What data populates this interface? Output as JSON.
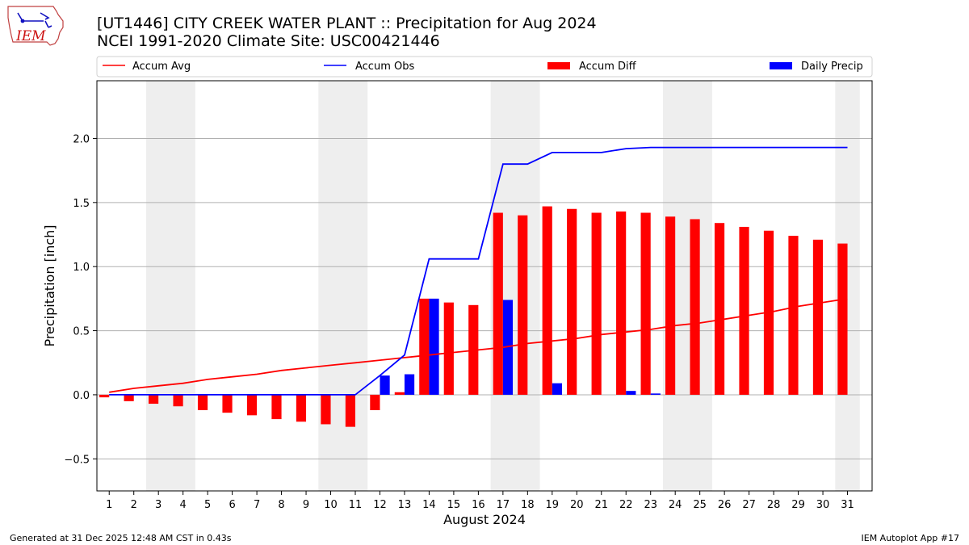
{
  "chart_data": {
    "type": "bar",
    "title_line1": "[UT1446] CITY CREEK WATER PLANT :: Precipitation for Aug 2024",
    "title_line2": "NCEI 1991-2020 Climate Site: USC00421446",
    "xlabel": "August 2024",
    "ylabel": "Precipitation [inch]",
    "ylim": [
      -0.75,
      2.45
    ],
    "yticks": [
      -0.5,
      0.0,
      0.5,
      1.0,
      1.5,
      2.0
    ],
    "ytick_labels": [
      "−0.5",
      "0.0",
      "0.5",
      "1.0",
      "1.5",
      "2.0"
    ],
    "grid": "horizontal",
    "legend_position": "top",
    "legend": [
      "Accum Avg",
      "Accum Obs",
      "Accum Diff",
      "Daily Precip"
    ],
    "weekend_shading": [
      [
        3,
        4
      ],
      [
        10,
        11
      ],
      [
        17,
        18
      ],
      [
        24,
        25
      ],
      [
        31,
        31
      ]
    ],
    "days": [
      1,
      2,
      3,
      4,
      5,
      6,
      7,
      8,
      9,
      10,
      11,
      12,
      13,
      14,
      15,
      16,
      17,
      18,
      19,
      20,
      21,
      22,
      23,
      24,
      25,
      26,
      27,
      28,
      29,
      30,
      31
    ],
    "day_labels": [
      "1",
      "2",
      "3",
      "4",
      "5",
      "6",
      "7",
      "8",
      "9",
      "10",
      "11",
      "12",
      "13",
      "14",
      "15",
      "16",
      "17",
      "18",
      "19",
      "20",
      "21",
      "22",
      "23",
      "24",
      "25",
      "26",
      "27",
      "28",
      "29",
      "30",
      "31"
    ],
    "series": [
      {
        "name": "Accum Avg",
        "kind": "line",
        "color": "#ff0000",
        "values": [
          0.02,
          0.05,
          0.07,
          0.09,
          0.12,
          0.14,
          0.16,
          0.19,
          0.21,
          0.23,
          0.25,
          0.27,
          0.29,
          0.31,
          0.33,
          0.35,
          0.37,
          0.4,
          0.42,
          0.44,
          0.47,
          0.49,
          0.51,
          0.54,
          0.56,
          0.59,
          0.62,
          0.65,
          0.69,
          0.72,
          0.75
        ]
      },
      {
        "name": "Accum Obs",
        "kind": "line",
        "color": "#0000ff",
        "values": [
          0.0,
          0.0,
          0.0,
          0.0,
          0.0,
          0.0,
          0.0,
          0.0,
          0.0,
          0.0,
          0.0,
          0.15,
          0.31,
          1.06,
          1.06,
          1.06,
          1.8,
          1.8,
          1.89,
          1.89,
          1.89,
          1.92,
          1.93,
          1.93,
          1.93,
          1.93,
          1.93,
          1.93,
          1.93,
          1.93,
          1.93
        ]
      },
      {
        "name": "Accum Diff",
        "kind": "bar",
        "color": "#ff0000",
        "values": [
          -0.02,
          -0.05,
          -0.07,
          -0.09,
          -0.12,
          -0.14,
          -0.16,
          -0.19,
          -0.21,
          -0.23,
          -0.25,
          -0.12,
          0.02,
          0.75,
          0.72,
          0.7,
          1.42,
          1.4,
          1.47,
          1.45,
          1.42,
          1.43,
          1.42,
          1.39,
          1.37,
          1.34,
          1.31,
          1.28,
          1.24,
          1.21,
          1.18
        ]
      },
      {
        "name": "Daily Precip",
        "kind": "bar",
        "color": "#0000ff",
        "values": [
          0,
          0,
          0,
          0,
          0,
          0,
          0,
          0,
          0,
          0,
          0,
          0.15,
          0.16,
          0.75,
          0,
          0,
          0.74,
          0,
          0.09,
          0,
          0,
          0.03,
          0.01,
          0,
          0,
          0,
          0,
          0,
          0,
          0,
          0
        ]
      }
    ]
  },
  "logo": {
    "text": "IEM"
  },
  "footer": {
    "generated": "Generated at 31 Dec 2025 12:48 AM CST in 0.43s",
    "app": "IEM Autoplot App #17"
  },
  "colors": {
    "shade": "#eeeeee",
    "grid": "#b0b0b0"
  }
}
